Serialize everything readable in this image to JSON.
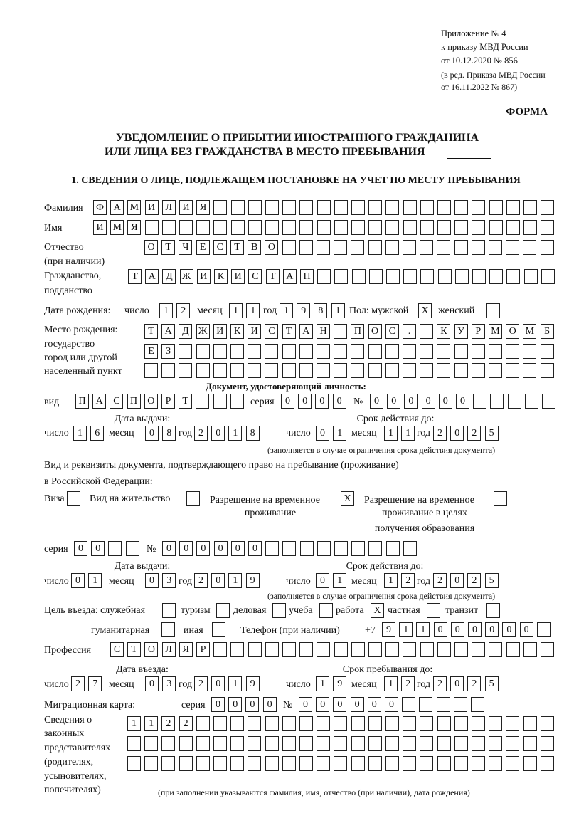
{
  "header": {
    "appendix": "Приложение № 4",
    "order_line": "к приказу МВД России",
    "order_date": "от 10.12.2020 № 856",
    "revision_line1": "(в ред. Приказа МВД России",
    "revision_line2": "от 16.11.2022 № 867)",
    "form_label": "ФОРМА",
    "title_line1": "УВЕДОМЛЕНИЕ О ПРИБЫТИИ ИНОСТРАННОГО ГРАЖДАНИНА",
    "title_line2": "ИЛИ ЛИЦА БЕЗ ГРАЖДАНСТВА В МЕСТО ПРЕБЫВАНИЯ",
    "section1": "1. СВЕДЕНИЯ О ЛИЦЕ, ПОДЛЕЖАЩЕМ ПОСТАНОВКЕ НА УЧЕТ ПО МЕСТУ ПРЕБЫВАНИЯ"
  },
  "person": {
    "surname_label": "Фамилия",
    "surname": [
      "Ф",
      "А",
      "М",
      "И",
      "Л",
      "И",
      "Я",
      "",
      "",
      "",
      "",
      "",
      "",
      "",
      "",
      "",
      "",
      "",
      "",
      "",
      "",
      "",
      "",
      "",
      "",
      "",
      ""
    ],
    "name_label": "Имя",
    "name": [
      "И",
      "М",
      "Я",
      "",
      "",
      "",
      "",
      "",
      "",
      "",
      "",
      "",
      "",
      "",
      "",
      "",
      "",
      "",
      "",
      "",
      "",
      "",
      "",
      "",
      "",
      "",
      ""
    ],
    "patronymic_label": "Отчество",
    "patronymic_note": "(при наличии)",
    "patronymic": [
      "О",
      "Т",
      "Ч",
      "Е",
      "С",
      "Т",
      "В",
      "О",
      "",
      "",
      "",
      "",
      "",
      "",
      "",
      "",
      "",
      "",
      "",
      "",
      "",
      "",
      "",
      ""
    ],
    "citizenship_label": "Гражданство,",
    "citizenship_label2": "подданство",
    "citizenship": [
      "Т",
      "А",
      "Д",
      "Ж",
      "И",
      "К",
      "И",
      "С",
      "Т",
      "А",
      "Н",
      "",
      "",
      "",
      "",
      "",
      "",
      "",
      "",
      "",
      "",
      "",
      "",
      "",
      ""
    ],
    "birth_date_label": "Дата рождения:",
    "day_label": "число",
    "month_label": "месяц",
    "year_label": "год",
    "birth_day": [
      "1",
      "2"
    ],
    "birth_month": [
      "1",
      "1"
    ],
    "birth_year": [
      "1",
      "9",
      "8",
      "1"
    ],
    "sex_label": "Пол: мужской",
    "sex_male": [
      "X"
    ],
    "sex_female_label": "женский",
    "sex_female": [
      ""
    ],
    "birthplace_label1": "Место рождения:",
    "birthplace_label2": "государство",
    "birthplace_label3": "город или другой",
    "birthplace_label4": "населенный пункт",
    "birthplace_row1": [
      "Т",
      "А",
      "Д",
      "Ж",
      "И",
      "К",
      "И",
      "С",
      "Т",
      "А",
      "Н",
      "",
      "П",
      "О",
      "С",
      ".",
      "",
      "К",
      "У",
      "Р",
      "М",
      "О",
      "М",
      "Б"
    ],
    "birthplace_row2": [
      "Е",
      "З",
      "",
      "",
      "",
      "",
      "",
      "",
      "",
      "",
      "",
      "",
      "",
      "",
      "",
      "",
      "",
      "",
      "",
      "",
      "",
      "",
      "",
      ""
    ],
    "birthplace_row3": [
      "",
      "",
      "",
      "",
      "",
      "",
      "",
      "",
      "",
      "",
      "",
      "",
      "",
      "",
      "",
      "",
      "",
      "",
      "",
      "",
      "",
      "",
      "",
      ""
    ]
  },
  "id_document": {
    "heading": "Документ, удостоверяющий личность:",
    "type_label": "вид",
    "type": [
      "П",
      "А",
      "С",
      "П",
      "О",
      "Р",
      "Т",
      "",
      "",
      ""
    ],
    "series_label": "серия",
    "series": [
      "0",
      "0",
      "0",
      "0"
    ],
    "number_label": "№",
    "number": [
      "0",
      "0",
      "0",
      "0",
      "0",
      "0",
      "",
      "",
      "",
      "",
      ""
    ],
    "issue_label": "Дата выдачи:",
    "valid_label": "Срок действия до:",
    "issue_day": [
      "1",
      "6"
    ],
    "issue_month": [
      "0",
      "8"
    ],
    "issue_year": [
      "2",
      "0",
      "1",
      "8"
    ],
    "valid_day": [
      "0",
      "1"
    ],
    "valid_month": [
      "1",
      "1"
    ],
    "valid_year": [
      "2",
      "0",
      "2",
      "5"
    ],
    "note": "(заполняется в случае ограничения срока действия документа)"
  },
  "stay_document": {
    "heading1": "Вид и реквизиты документа, подтверждающего право на пребывание (проживание)",
    "heading2": "в Российской Федерации:",
    "visa_label": "Виза",
    "visa": [
      ""
    ],
    "residence_label": "Вид на жительство",
    "residence": [
      ""
    ],
    "temp_label1": "Разрешение на временное",
    "temp_label2": "проживание",
    "temp": [
      "X"
    ],
    "edu_label1": "Разрешение на временное",
    "edu_label2": "проживание в целях",
    "edu_label3": "получения образования",
    "edu": [
      ""
    ],
    "series_label": "серия",
    "series": [
      "0",
      "0",
      "",
      ""
    ],
    "number_label": "№",
    "number": [
      "0",
      "0",
      "0",
      "0",
      "0",
      "0",
      "",
      "",
      "",
      "",
      "",
      "",
      "",
      "",
      ""
    ],
    "issue_label": "Дата выдачи:",
    "valid_label": "Срок действия до:",
    "issue_day": [
      "0",
      "1"
    ],
    "issue_month": [
      "0",
      "3"
    ],
    "issue_year": [
      "2",
      "0",
      "1",
      "9"
    ],
    "valid_day": [
      "0",
      "1"
    ],
    "valid_month": [
      "1",
      "2"
    ],
    "valid_year": [
      "2",
      "0",
      "2",
      "5"
    ],
    "note": "(заполняется в случае ограничения срока действия документа)"
  },
  "purpose": {
    "label": "Цель въезда: служебная",
    "official": [
      ""
    ],
    "tourism_label": "туризм",
    "tourism": [
      ""
    ],
    "business_label": "деловая",
    "business": [
      ""
    ],
    "study_label": "учеба",
    "study": [
      ""
    ],
    "work_label": "работа",
    "work": [
      "X"
    ],
    "private_label": "частная",
    "private": [
      ""
    ],
    "transit_label": "транзит",
    "transit": [
      ""
    ],
    "humanitarian_label": "гуманитарная",
    "humanitarian": [
      ""
    ],
    "other_label": "иная",
    "other": [
      ""
    ],
    "phone_label": "Телефон (при наличии)",
    "phone_prefix": "+7",
    "phone": [
      "9",
      "1",
      "1",
      "0",
      "0",
      "0",
      "0",
      "0",
      "0",
      ""
    ]
  },
  "profession": {
    "label": "Профессия",
    "value": [
      "С",
      "Т",
      "О",
      "Л",
      "Я",
      "Р",
      "",
      "",
      "",
      "",
      "",
      "",
      "",
      "",
      "",
      "",
      "",
      "",
      "",
      "",
      "",
      "",
      "",
      "",
      "",
      ""
    ]
  },
  "entry": {
    "entry_label": "Дата въезда:",
    "stay_until_label": "Срок пребывания до:",
    "entry_day": [
      "2",
      "7"
    ],
    "entry_month": [
      "0",
      "3"
    ],
    "entry_year": [
      "2",
      "0",
      "1",
      "9"
    ],
    "until_day": [
      "1",
      "9"
    ],
    "until_month": [
      "1",
      "2"
    ],
    "until_year": [
      "2",
      "0",
      "2",
      "5"
    ]
  },
  "migration_card": {
    "label": "Миграционная карта:",
    "series_label": "серия",
    "series": [
      "0",
      "0",
      "0",
      "0"
    ],
    "number_label": "№",
    "number": [
      "0",
      "0",
      "0",
      "0",
      "0",
      "0",
      "",
      "",
      "",
      "",
      ""
    ]
  },
  "representatives": {
    "label1": "Сведения о",
    "label2": "законных",
    "label3": "представителях",
    "label4": "(родителях,",
    "label5": "усыновителях,",
    "label6": "попечителях)",
    "row1": [
      "1",
      "1",
      "2",
      "2",
      "",
      "",
      "",
      "",
      "",
      "",
      "",
      "",
      "",
      "",
      "",
      "",
      "",
      "",
      "",
      "",
      "",
      "",
      "",
      "",
      ""
    ],
    "row2": [
      "",
      "",
      "",
      "",
      "",
      "",
      "",
      "",
      "",
      "",
      "",
      "",
      "",
      "",
      "",
      "",
      "",
      "",
      "",
      "",
      "",
      "",
      "",
      "",
      ""
    ],
    "row3": [
      "",
      "",
      "",
      "",
      "",
      "",
      "",
      "",
      "",
      "",
      "",
      "",
      "",
      "",
      "",
      "",
      "",
      "",
      "",
      "",
      "",
      "",
      "",
      "",
      ""
    ],
    "note": "(при заполнении указываются фамилия, имя, отчество (при наличии), дата рождения)"
  }
}
